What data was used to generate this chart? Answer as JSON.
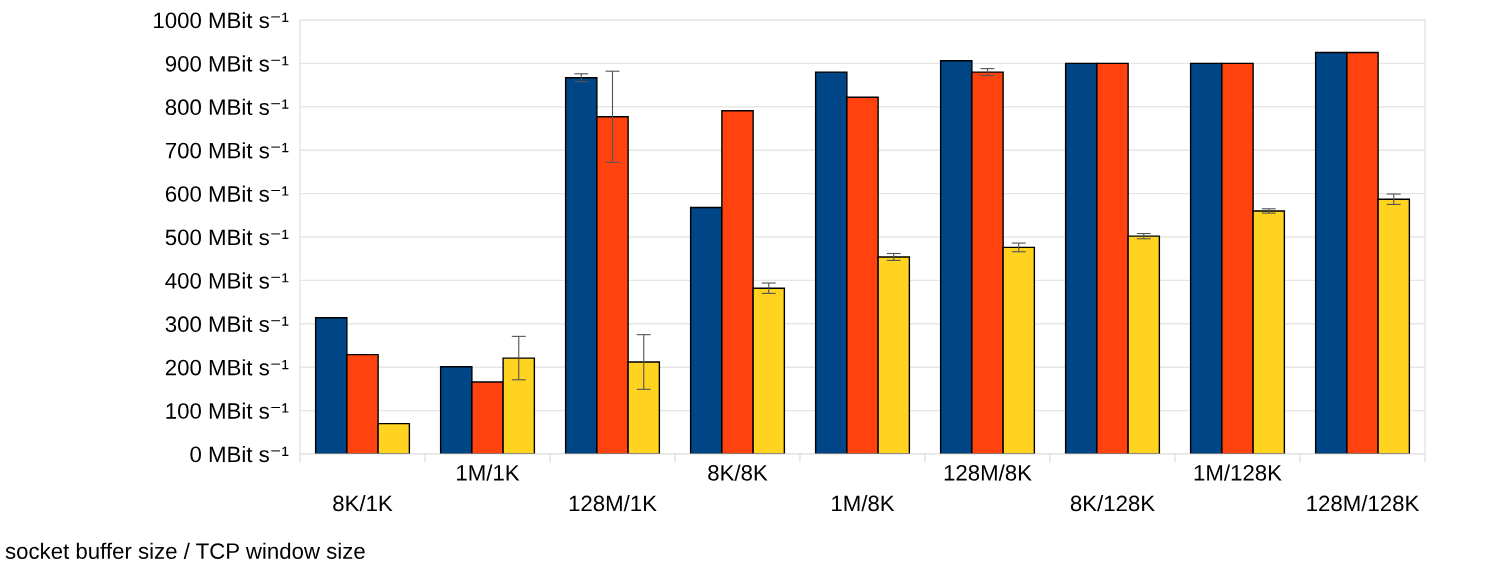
{
  "chart_data": {
    "type": "bar",
    "xlabel": "socket buffer size / TCP window size",
    "categories": [
      "8K/1K",
      "1M/1K",
      "128M/1K",
      "8K/8K",
      "1M/8K",
      "128M/8K",
      "8K/128K",
      "1M/128K",
      "128M/128K"
    ],
    "series": [
      {
        "color": "#004586",
        "values": [
          314,
          201,
          867,
          568,
          880,
          906,
          900,
          900,
          925
        ],
        "errors": [
          null,
          null,
          9,
          null,
          null,
          null,
          null,
          null,
          null
        ]
      },
      {
        "color": "#ff420e",
        "values": [
          229,
          166,
          777,
          791,
          822,
          880,
          900,
          900,
          925
        ],
        "errors": [
          null,
          null,
          105,
          null,
          null,
          8,
          null,
          null,
          null
        ]
      },
      {
        "color": "#ffd320",
        "values": [
          70,
          221,
          212,
          382,
          454,
          476,
          502,
          560,
          587
        ],
        "errors": [
          null,
          50,
          63,
          12,
          8,
          10,
          6,
          5,
          12
        ]
      }
    ],
    "ylim": [
      0,
      1000
    ],
    "yticks": [
      {
        "value": 0,
        "label": "0 MBit s⁻¹"
      },
      {
        "value": 100,
        "label": "100 MBit s⁻¹"
      },
      {
        "value": 200,
        "label": "200 MBit s⁻¹"
      },
      {
        "value": 300,
        "label": "300 MBit s⁻¹"
      },
      {
        "value": 400,
        "label": "400 MBit s⁻¹"
      },
      {
        "value": 500,
        "label": "500 MBit s⁻¹"
      },
      {
        "value": 600,
        "label": "600 MBit s⁻¹"
      },
      {
        "value": 700,
        "label": "700 MBit s⁻¹"
      },
      {
        "value": 800,
        "label": "800 MBit s⁻¹"
      },
      {
        "value": 900,
        "label": "900 MBit s⁻¹"
      },
      {
        "value": 1000,
        "label": "1000 MBit s⁻¹"
      }
    ],
    "grid": "y"
  }
}
